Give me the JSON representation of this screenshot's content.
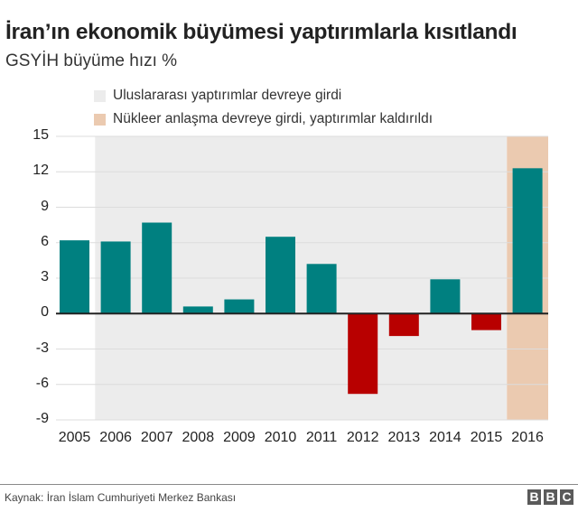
{
  "header": {
    "title": "İran’ın ekonomik büyümesi yaptırımlarla kısıtlandı",
    "subtitle": "GSYİH büyüme hızı %"
  },
  "legend": [
    {
      "label": "Uluslararası yaptırımlar devreye girdi",
      "color": "#ececec"
    },
    {
      "label": "Nükleer anlaşma devreye girdi, yaptırımlar kaldırıldı",
      "color": "#ebcab0"
    }
  ],
  "colors": {
    "positive": "#008080",
    "negative": "#b80000",
    "sanctions_bg": "#ececec",
    "deal_bg": "#ebcab0",
    "gridline": "#dcdcdc",
    "zero_line": "#222222"
  },
  "chart_data": {
    "type": "bar",
    "title": "İran’ın ekonomik büyümesi yaptırımlarla kısıtlandı",
    "subtitle": "GSYİH büyüme hızı %",
    "xlabel": "",
    "ylabel": "GSYİH büyüme hızı %",
    "categories": [
      "2005",
      "2006",
      "2007",
      "2008",
      "2009",
      "2010",
      "2011",
      "2012",
      "2013",
      "2014",
      "2015",
      "2016"
    ],
    "values": [
      6.2,
      6.1,
      7.7,
      0.6,
      1.2,
      6.5,
      4.2,
      -6.8,
      -1.9,
      2.9,
      -1.4,
      12.3
    ],
    "ylim": [
      -9,
      15
    ],
    "yticks": [
      15,
      12,
      9,
      6,
      3,
      0,
      -3,
      -6,
      -9
    ],
    "grid": true,
    "legend_position": "top",
    "shaded_ranges": [
      {
        "label": "Uluslararası yaptırımlar devreye girdi",
        "from": "2006",
        "to": "2015",
        "color": "#ececec"
      },
      {
        "label": "Nükleer anlaşma devreye girdi, yaptırımlar kaldırıldı",
        "from": "2016",
        "to": "2016",
        "color": "#ebcab0"
      }
    ]
  },
  "footer": {
    "source": "Kaynak: İran İslam Cumhuriyeti Merkez Bankası",
    "logo_letters": [
      "B",
      "B",
      "C"
    ]
  }
}
